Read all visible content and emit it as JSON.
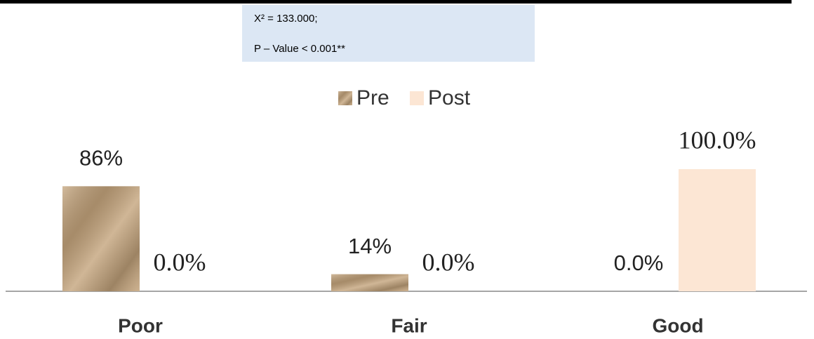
{
  "chart_data": {
    "type": "bar",
    "annotations": [
      "X² = 133.000;",
      "P – Value < 0.001**"
    ],
    "categories": [
      "Poor",
      "Fair",
      "Good"
    ],
    "series": [
      {
        "name": "Pre",
        "color": "#c4a47c",
        "values": [
          86,
          14,
          0
        ],
        "value_labels": [
          "86%",
          "14%",
          "0.0%"
        ]
      },
      {
        "name": "Post",
        "color": "#fce6d4",
        "values": [
          0,
          0,
          100
        ],
        "value_labels": [
          "0.0%",
          "0.0%",
          "100.0%"
        ]
      }
    ],
    "ylim": [
      0,
      100
    ],
    "legend": "top"
  }
}
